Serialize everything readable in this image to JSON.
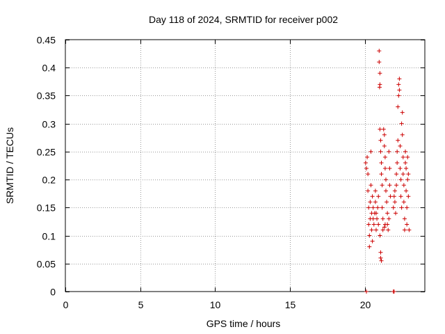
{
  "chart_data": {
    "type": "scatter",
    "title": "Day 118 of 2024, SRMTID for receiver p002",
    "xlabel": "GPS time / hours",
    "ylabel": "SRMTID / TECUs",
    "xlim": [
      0,
      24
    ],
    "ylim": [
      0,
      0.45
    ],
    "xticks": [
      0,
      5,
      10,
      15,
      20
    ],
    "yticks": [
      0,
      0.05,
      0.1,
      0.15,
      0.2,
      0.25,
      0.3,
      0.35,
      0.4,
      0.45
    ],
    "grid": true,
    "series": [
      {
        "name": "SRMTID",
        "color": "#cc0000",
        "marker": "+",
        "points": [
          [
            20.05,
            0.23
          ],
          [
            20.1,
            0.22
          ],
          [
            20.15,
            0.24
          ],
          [
            20.2,
            0.21
          ],
          [
            20.2,
            0.18
          ],
          [
            20.25,
            0.15
          ],
          [
            20.25,
            0.12
          ],
          [
            20.3,
            0.1
          ],
          [
            20.3,
            0.08
          ],
          [
            20.35,
            0.13
          ],
          [
            20.35,
            0.16
          ],
          [
            20.4,
            0.19
          ],
          [
            20.4,
            0.25
          ],
          [
            20.45,
            0.14
          ],
          [
            20.45,
            0.11
          ],
          [
            20.5,
            0.17
          ],
          [
            20.5,
            0.09
          ],
          [
            20.55,
            0.15
          ],
          [
            20.55,
            0.13
          ],
          [
            20.6,
            0.12
          ],
          [
            20.65,
            0.14
          ],
          [
            20.7,
            0.16
          ],
          [
            20.7,
            0.18
          ],
          [
            20.75,
            0.11
          ],
          [
            20.75,
            0.14
          ],
          [
            20.8,
            0.13
          ],
          [
            20.85,
            0.15
          ],
          [
            20.9,
            0.17
          ],
          [
            20.9,
            0.12
          ],
          [
            20.95,
            0.43
          ],
          [
            20.95,
            0.41
          ],
          [
            21.0,
            0.39
          ],
          [
            21.0,
            0.37
          ],
          [
            20.98,
            0.365
          ],
          [
            21.0,
            0.29
          ],
          [
            21.05,
            0.27
          ],
          [
            21.05,
            0.25
          ],
          [
            21.1,
            0.23
          ],
          [
            21.1,
            0.21
          ],
          [
            21.15,
            0.19
          ],
          [
            21.15,
            0.15
          ],
          [
            21.2,
            0.13
          ],
          [
            21.2,
            0.11
          ],
          [
            21.0,
            0.1
          ],
          [
            21.05,
            0.07
          ],
          [
            21.05,
            0.06
          ],
          [
            21.1,
            0.055
          ],
          [
            21.25,
            0.29
          ],
          [
            21.3,
            0.28
          ],
          [
            21.3,
            0.26
          ],
          [
            21.35,
            0.24
          ],
          [
            21.35,
            0.22
          ],
          [
            21.4,
            0.2
          ],
          [
            21.4,
            0.18
          ],
          [
            21.45,
            0.16
          ],
          [
            21.5,
            0.14
          ],
          [
            21.5,
            0.12
          ],
          [
            21.55,
            0.11
          ],
          [
            21.6,
            0.13
          ],
          [
            21.6,
            0.25
          ],
          [
            21.65,
            0.22
          ],
          [
            21.65,
            0.19
          ],
          [
            21.7,
            0.17
          ],
          [
            21.3,
            0.115
          ],
          [
            21.35,
            0.12
          ],
          [
            21.9,
            0.15
          ],
          [
            21.95,
            0.17
          ],
          [
            22.0,
            0.18
          ],
          [
            22.0,
            0.16
          ],
          [
            22.05,
            0.14
          ],
          [
            22.1,
            0.19
          ],
          [
            22.1,
            0.21
          ],
          [
            22.15,
            0.23
          ],
          [
            22.15,
            0.25
          ],
          [
            22.2,
            0.27
          ],
          [
            22.2,
            0.33
          ],
          [
            22.25,
            0.35
          ],
          [
            22.25,
            0.37
          ],
          [
            22.3,
            0.38
          ],
          [
            22.3,
            0.36
          ],
          [
            22.35,
            0.26
          ],
          [
            22.35,
            0.22
          ],
          [
            22.4,
            0.2
          ],
          [
            22.4,
            0.17
          ],
          [
            22.45,
            0.15
          ],
          [
            22.45,
            0.3
          ],
          [
            22.5,
            0.32
          ],
          [
            22.5,
            0.28
          ],
          [
            22.55,
            0.24
          ],
          [
            22.55,
            0.21
          ],
          [
            22.6,
            0.19
          ],
          [
            22.6,
            0.16
          ],
          [
            22.65,
            0.13
          ],
          [
            22.65,
            0.11
          ],
          [
            22.7,
            0.23
          ],
          [
            22.7,
            0.25
          ],
          [
            22.75,
            0.22
          ],
          [
            22.75,
            0.18
          ],
          [
            22.8,
            0.15
          ],
          [
            22.8,
            0.12
          ],
          [
            22.85,
            0.2
          ],
          [
            22.85,
            0.24
          ],
          [
            22.9,
            0.21
          ],
          [
            22.9,
            0.17
          ],
          [
            22.95,
            0.11
          ],
          [
            20.1,
            0.0
          ],
          [
            21.9,
            0.0
          ],
          [
            21.95,
            0.0
          ]
        ]
      }
    ]
  }
}
